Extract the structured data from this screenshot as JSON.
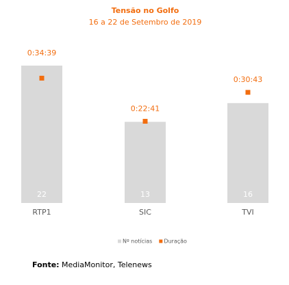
{
  "chart_data": {
    "type": "bar",
    "title": "Tensão no Golfo",
    "subtitle": "16 a 22 de Setembro de 2019",
    "categories": [
      "RTP1",
      "SIC",
      "TVI"
    ],
    "series": [
      {
        "name": "Nº notícias",
        "color": "#d9d9d9",
        "values": [
          22,
          13,
          16
        ]
      },
      {
        "name": "Duração",
        "color": "#f26d0f",
        "axis": "y2",
        "values": [
          2079,
          1361,
          1843
        ],
        "value_labels": [
          "0:34:39",
          "0:22:41",
          "0:30:43"
        ]
      }
    ],
    "ylim": [
      0,
      25
    ],
    "y2lim": [
      0,
      2600
    ],
    "legend": "bottom",
    "source_label": "Fonte:",
    "source": "MediaMonitor, Telenews"
  }
}
